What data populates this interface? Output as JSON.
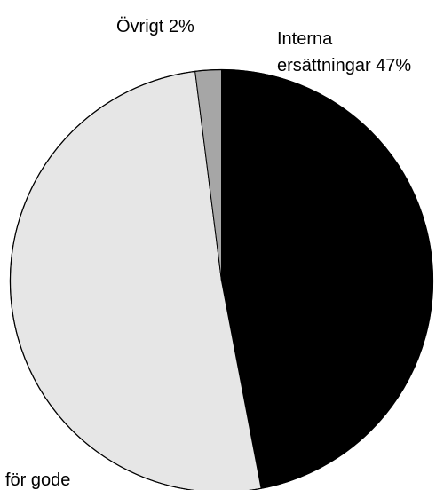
{
  "chart_data": {
    "type": "pie",
    "title": "",
    "start_angle_deg": 0,
    "direction": "clockwise",
    "slices": [
      {
        "label": "Interna ersättningar 47%",
        "label_lines": [
          "Interna",
          "ersättningar 47%"
        ],
        "value": 47,
        "color": "#000000"
      },
      {
        "label": "för gode",
        "label_lines": [
          "för gode"
        ],
        "value": 51,
        "color": "#e6e6e6"
      },
      {
        "label": "Övrigt 2%",
        "label_lines": [
          "Övrigt 2%"
        ],
        "value": 2,
        "color": "#a6a6a6"
      }
    ]
  }
}
